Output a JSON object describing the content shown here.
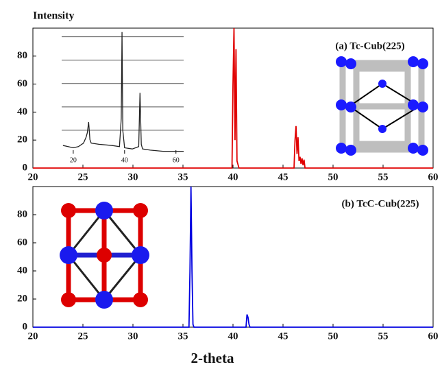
{
  "chart_data": [
    {
      "type": "line",
      "ylabel": "Intensity",
      "annotation": "(a) Tc-Cub(225)",
      "color": "#e00000",
      "x": [
        20,
        39.9,
        40.0,
        40.1,
        40.2,
        40.3,
        40.4,
        40.6,
        46.1,
        46.2,
        46.3,
        46.4,
        46.5,
        46.6,
        46.7,
        46.8,
        46.9,
        47.0,
        47.1,
        47.2,
        60
      ],
      "values": [
        0,
        0,
        60,
        100,
        20,
        85,
        5,
        0,
        0,
        20,
        30,
        10,
        22,
        5,
        8,
        3,
        7,
        2,
        6,
        0,
        0
      ],
      "xlim": [
        20,
        60
      ],
      "xticks": [
        20,
        25,
        30,
        35,
        40,
        45,
        50,
        55,
        60
      ],
      "ylim": [
        0,
        100
      ],
      "yticks": [
        0,
        20,
        40,
        60,
        80
      ]
    },
    {
      "type": "line",
      "xlabel": "2-theta",
      "annotation": "(b) TcC-Cub(225)",
      "color": "#0000e0",
      "x": [
        20,
        35.6,
        35.7,
        35.8,
        35.9,
        36.0,
        36.1,
        41.3,
        41.4,
        41.5,
        41.6,
        41.7,
        60
      ],
      "values": [
        0,
        0,
        40,
        100,
        41,
        2,
        0,
        0,
        9,
        7,
        2,
        0,
        0
      ],
      "xlim": [
        20,
        60
      ],
      "xticks": [
        20,
        25,
        30,
        35,
        40,
        45,
        50,
        55,
        60
      ],
      "ylim": [
        0,
        100
      ],
      "yticks": [
        0,
        20,
        40,
        60,
        80
      ]
    },
    {
      "type": "line",
      "color": "#222222",
      "x": [
        16,
        18,
        20,
        22,
        24,
        25,
        25.5,
        26,
        26.5,
        27,
        30,
        35,
        38,
        38.7,
        39,
        39.3,
        40,
        43,
        45.5,
        46,
        46.5,
        47,
        50,
        55,
        60,
        63
      ],
      "values": [
        7,
        6,
        5,
        6,
        9,
        14,
        18,
        27,
        12,
        9,
        8,
        7,
        6,
        30,
        104,
        20,
        5,
        4,
        6,
        52,
        8,
        4,
        3,
        2,
        2,
        2
      ],
      "xlim": [
        15.5,
        63
      ],
      "xticks": [
        20,
        40,
        60
      ],
      "ylim": [
        0,
        108
      ],
      "grid_y": [
        20,
        40,
        60,
        80,
        100
      ]
    }
  ]
}
